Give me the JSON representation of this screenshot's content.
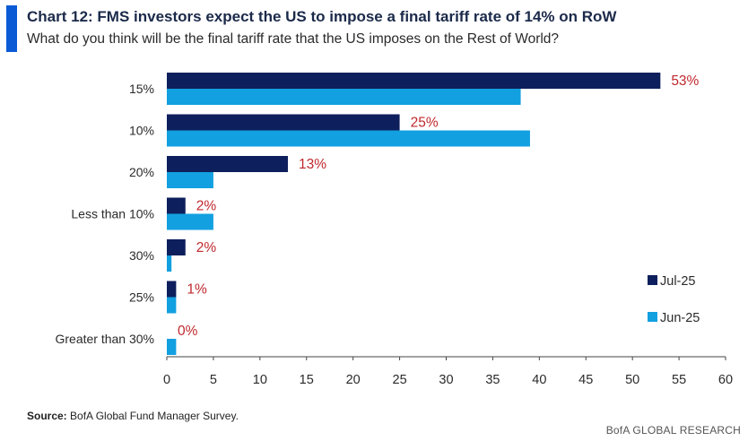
{
  "header": {
    "title": "Chart 12: FMS investors expect the US to impose a final tariff rate of 14% on RoW",
    "subtitle": "What do you think will be the final tariff rate that the US imposes on the Rest of World?"
  },
  "footer": {
    "source_label": "Source:",
    "source_text": " BofA Global Fund Manager Survey.",
    "brand": "BofA GLOBAL RESEARCH"
  },
  "colors": {
    "accent": "#0a5ad6",
    "jul": "#0d1f5c",
    "jun": "#12a0e0",
    "label": "#c0282d"
  },
  "chart_data": {
    "type": "bar",
    "orientation": "horizontal",
    "title": "Chart 12: FMS investors expect the US to impose a final tariff rate of 14% on RoW",
    "subtitle": "What do you think will be the final tariff rate that the US imposes on the Rest of World?",
    "xlabel": "",
    "ylabel": "",
    "xlim": [
      0,
      60
    ],
    "x_ticks": [
      "0",
      "5",
      "10",
      "15",
      "20",
      "25",
      "30",
      "35",
      "40",
      "45",
      "50",
      "55",
      "60"
    ],
    "grid": false,
    "legend_position": "right",
    "categories": [
      "15%",
      "10%",
      "20%",
      "Less than 10%",
      "30%",
      "25%",
      "Greater than 30%"
    ],
    "series": [
      {
        "name": "Jul-25",
        "color": "#0d1f5c",
        "values": [
          53,
          25,
          13,
          2,
          2,
          1,
          0
        ],
        "labels": [
          "53%",
          "25%",
          "13%",
          "2%",
          "2%",
          "1%",
          "0%"
        ]
      },
      {
        "name": "Jun-25",
        "color": "#12a0e0",
        "values": [
          38,
          39,
          5,
          5,
          0.5,
          1,
          1
        ]
      }
    ]
  }
}
